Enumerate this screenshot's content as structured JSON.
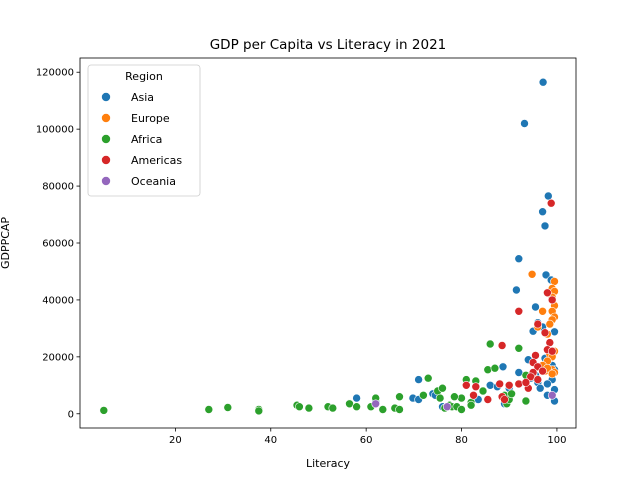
{
  "chart_data": {
    "type": "scatter",
    "title": "GDP per Capita vs Literacy in 2021",
    "xlabel": "Literacy",
    "ylabel": "GDPPCAP",
    "xlim": [
      0,
      104
    ],
    "ylim": [
      -5000,
      125000
    ],
    "xticks": [
      20,
      40,
      60,
      80,
      100
    ],
    "yticks": [
      0,
      20000,
      40000,
      60000,
      80000,
      100000,
      120000
    ],
    "grid": false,
    "legend": {
      "title": "Region",
      "placement": "top-left"
    },
    "series": [
      {
        "name": "Asia",
        "color": "#1f77b4",
        "points": [
          [
            97.1,
            116500
          ],
          [
            93.2,
            102000
          ],
          [
            98.2,
            76500
          ],
          [
            97.0,
            71000
          ],
          [
            97.5,
            66000
          ],
          [
            92.0,
            54500
          ],
          [
            97.7,
            48800
          ],
          [
            98.8,
            47000
          ],
          [
            91.5,
            43500
          ],
          [
            95.5,
            37500
          ],
          [
            96.0,
            32000
          ],
          [
            95.0,
            29000
          ],
          [
            97.0,
            30500
          ],
          [
            99.5,
            28800
          ],
          [
            98.0,
            22500
          ],
          [
            99.0,
            21000
          ],
          [
            94.0,
            19000
          ],
          [
            97.5,
            19500
          ],
          [
            99.0,
            17000
          ],
          [
            96.5,
            16500
          ],
          [
            88.7,
            16500
          ],
          [
            99.5,
            15500
          ],
          [
            98.5,
            15000
          ],
          [
            92.0,
            14500
          ],
          [
            95.5,
            13500
          ],
          [
            94.5,
            12500
          ],
          [
            99.0,
            12000
          ],
          [
            96.0,
            11000
          ],
          [
            98.0,
            10500
          ],
          [
            86.0,
            10000
          ],
          [
            87.5,
            9500
          ],
          [
            99.5,
            8500
          ],
          [
            96.5,
            9000
          ],
          [
            90.0,
            9000
          ],
          [
            98.0,
            6500
          ],
          [
            99.5,
            4500
          ],
          [
            71.0,
            12000
          ],
          [
            69.8,
            5500
          ],
          [
            71.0,
            5000
          ],
          [
            74.0,
            7000
          ],
          [
            74.5,
            6500
          ],
          [
            83.5,
            5000
          ],
          [
            89.0,
            3500
          ],
          [
            58.0,
            5500
          ],
          [
            62.0,
            4500
          ],
          [
            76.0,
            2500
          ]
        ]
      },
      {
        "name": "Europe",
        "color": "#ff7f0e",
        "points": [
          [
            94.8,
            49000
          ],
          [
            99.5,
            46500
          ],
          [
            99.0,
            44000
          ],
          [
            99.5,
            43000
          ],
          [
            99.0,
            41000
          ],
          [
            99.5,
            38000
          ],
          [
            99.0,
            36000
          ],
          [
            97.0,
            36000
          ],
          [
            99.5,
            34000
          ],
          [
            99.0,
            33000
          ],
          [
            98.5,
            31500
          ],
          [
            96.0,
            30500
          ],
          [
            98.0,
            28000
          ],
          [
            99.5,
            22000
          ],
          [
            98.5,
            21000
          ],
          [
            99.0,
            20000
          ],
          [
            98.0,
            18500
          ],
          [
            97.0,
            17000
          ],
          [
            99.0,
            15500
          ],
          [
            99.5,
            14500
          ],
          [
            97.5,
            15000
          ],
          [
            95.0,
            14000
          ],
          [
            98.0,
            16000
          ],
          [
            99.0,
            14000
          ]
        ]
      },
      {
        "name": "Africa",
        "color": "#2ca02c",
        "points": [
          [
            5.0,
            1200
          ],
          [
            27.0,
            1500
          ],
          [
            31.0,
            2200
          ],
          [
            37.5,
            1500
          ],
          [
            37.5,
            1000
          ],
          [
            45.5,
            3000
          ],
          [
            46.0,
            2500
          ],
          [
            48.0,
            2000
          ],
          [
            52.0,
            2500
          ],
          [
            53.0,
            2000
          ],
          [
            56.5,
            3500
          ],
          [
            58.0,
            2500
          ],
          [
            61.0,
            2500
          ],
          [
            62.0,
            5500
          ],
          [
            63.5,
            1500
          ],
          [
            66.0,
            2000
          ],
          [
            67.0,
            6000
          ],
          [
            67.0,
            1500
          ],
          [
            72.0,
            6500
          ],
          [
            73.0,
            12500
          ],
          [
            75.0,
            8000
          ],
          [
            75.5,
            5500
          ],
          [
            76.0,
            9000
          ],
          [
            76.5,
            2000
          ],
          [
            77.5,
            3000
          ],
          [
            78.0,
            2500
          ],
          [
            79.0,
            2500
          ],
          [
            80.0,
            1500
          ],
          [
            80.0,
            5500
          ],
          [
            81.0,
            12000
          ],
          [
            82.0,
            4000
          ],
          [
            82.0,
            3000
          ],
          [
            83.0,
            11500
          ],
          [
            84.5,
            8000
          ],
          [
            85.5,
            15500
          ],
          [
            86.0,
            24500
          ],
          [
            87.0,
            16000
          ],
          [
            89.0,
            6500
          ],
          [
            89.5,
            3500
          ],
          [
            90.0,
            5000
          ],
          [
            90.5,
            7000
          ],
          [
            92.0,
            23000
          ],
          [
            93.5,
            13500
          ],
          [
            93.5,
            4500
          ],
          [
            78.5,
            6000
          ]
        ]
      },
      {
        "name": "Americas",
        "color": "#d62728",
        "points": [
          [
            98.8,
            74000
          ],
          [
            98.0,
            42500
          ],
          [
            99.0,
            40000
          ],
          [
            92.0,
            36000
          ],
          [
            96.0,
            31500
          ],
          [
            97.5,
            28500
          ],
          [
            98.5,
            25000
          ],
          [
            98.0,
            22500
          ],
          [
            99.0,
            22000
          ],
          [
            88.5,
            24000
          ],
          [
            95.5,
            20500
          ],
          [
            95.0,
            18000
          ],
          [
            96.0,
            16500
          ],
          [
            97.0,
            15000
          ],
          [
            95.0,
            14500
          ],
          [
            94.5,
            13000
          ],
          [
            96.0,
            12000
          ],
          [
            92.0,
            10500
          ],
          [
            90.0,
            10000
          ],
          [
            88.0,
            10500
          ],
          [
            81.0,
            10000
          ],
          [
            83.0,
            9500
          ],
          [
            94.0,
            9000
          ],
          [
            93.5,
            11000
          ],
          [
            82.5,
            6500
          ],
          [
            88.5,
            6000
          ],
          [
            89.0,
            5000
          ],
          [
            85.5,
            5000
          ]
        ]
      },
      {
        "name": "Oceania",
        "color": "#9467bd",
        "points": [
          [
            99.0,
            6500
          ],
          [
            62.0,
            3500
          ],
          [
            77.0,
            2500
          ]
        ]
      }
    ]
  }
}
